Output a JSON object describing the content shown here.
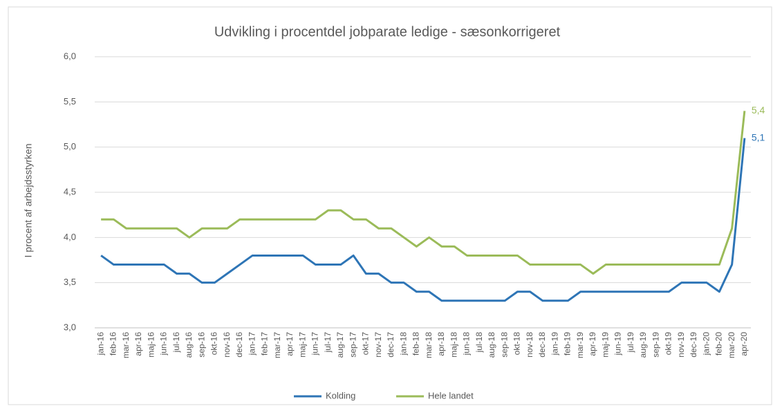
{
  "chart_data": {
    "type": "line",
    "title": "Udvikling i procentdel jobparate ledige - sæsonkorrigeret",
    "y_label": "I procent af arbejdsstyrken",
    "categories": [
      "jan-16",
      "feb-16",
      "mar-16",
      "apr-16",
      "maj-16",
      "jun-16",
      "jul-16",
      "aug-16",
      "sep-16",
      "okt-16",
      "nov-16",
      "dec-16",
      "jan-17",
      "feb-17",
      "mar-17",
      "apr-17",
      "maj-17",
      "jun-17",
      "jul-17",
      "aug-17",
      "sep-17",
      "okt-17",
      "nov-17",
      "dec-17",
      "jan-18",
      "feb-18",
      "mar-18",
      "apr-18",
      "maj-18",
      "jun-18",
      "jul-18",
      "aug-18",
      "sep-18",
      "okt-18",
      "nov-18",
      "dec-18",
      "jan-19",
      "feb-19",
      "mar-19",
      "apr-19",
      "maj-19",
      "jun-19",
      "jul-19",
      "aug-19",
      "sep-19",
      "okt-19",
      "nov-19",
      "dec-19",
      "jan-20",
      "feb-20",
      "mar-20",
      "apr-20"
    ],
    "series": [
      {
        "name": "Kolding",
        "color": "#2e75b6",
        "values": [
          3.8,
          3.7,
          3.7,
          3.7,
          3.7,
          3.7,
          3.6,
          3.6,
          3.5,
          3.5,
          3.6,
          3.7,
          3.8,
          3.8,
          3.8,
          3.8,
          3.8,
          3.7,
          3.7,
          3.7,
          3.8,
          3.6,
          3.6,
          3.5,
          3.5,
          3.4,
          3.4,
          3.3,
          3.3,
          3.3,
          3.3,
          3.3,
          3.3,
          3.4,
          3.4,
          3.3,
          3.3,
          3.3,
          3.4,
          3.4,
          3.4,
          3.4,
          3.4,
          3.4,
          3.4,
          3.4,
          3.5,
          3.5,
          3.5,
          3.4,
          3.7,
          5.1
        ],
        "value_labels": [
          null,
          null,
          null,
          null,
          null,
          null,
          null,
          null,
          null,
          null,
          null,
          null,
          null,
          null,
          null,
          null,
          null,
          null,
          null,
          null,
          null,
          null,
          null,
          null,
          null,
          null,
          null,
          null,
          null,
          null,
          null,
          null,
          null,
          null,
          null,
          null,
          null,
          null,
          null,
          null,
          null,
          null,
          null,
          null,
          null,
          null,
          null,
          null,
          null,
          null,
          null,
          "5,1"
        ]
      },
      {
        "name": "Hele landet",
        "color": "#9bbb59",
        "values": [
          4.2,
          4.2,
          4.1,
          4.1,
          4.1,
          4.1,
          4.1,
          4.0,
          4.1,
          4.1,
          4.1,
          4.2,
          4.2,
          4.2,
          4.2,
          4.2,
          4.2,
          4.2,
          4.3,
          4.3,
          4.2,
          4.2,
          4.1,
          4.1,
          4.0,
          3.9,
          4.0,
          3.9,
          3.9,
          3.8,
          3.8,
          3.8,
          3.8,
          3.8,
          3.7,
          3.7,
          3.7,
          3.7,
          3.7,
          3.6,
          3.7,
          3.7,
          3.7,
          3.7,
          3.7,
          3.7,
          3.7,
          3.7,
          3.7,
          3.7,
          4.1,
          5.4
        ],
        "value_labels": [
          null,
          null,
          null,
          null,
          null,
          null,
          null,
          null,
          null,
          null,
          null,
          null,
          null,
          null,
          null,
          null,
          null,
          null,
          null,
          null,
          null,
          null,
          null,
          null,
          null,
          null,
          null,
          null,
          null,
          null,
          null,
          null,
          null,
          null,
          null,
          null,
          null,
          null,
          null,
          null,
          null,
          null,
          null,
          null,
          null,
          null,
          null,
          null,
          null,
          null,
          null,
          "5,4"
        ]
      }
    ],
    "ylim": [
      3.0,
      6.0
    ],
    "yticks": [
      {
        "value": 3.0,
        "label": "3,0"
      },
      {
        "value": 3.5,
        "label": "3,5"
      },
      {
        "value": 4.0,
        "label": "4,0"
      },
      {
        "value": 4.5,
        "label": "4,5"
      },
      {
        "value": 5.0,
        "label": "5,0"
      },
      {
        "value": 5.5,
        "label": "5,5"
      },
      {
        "value": 6.0,
        "label": "6,0"
      }
    ],
    "grid": true,
    "legend": "bottom"
  }
}
